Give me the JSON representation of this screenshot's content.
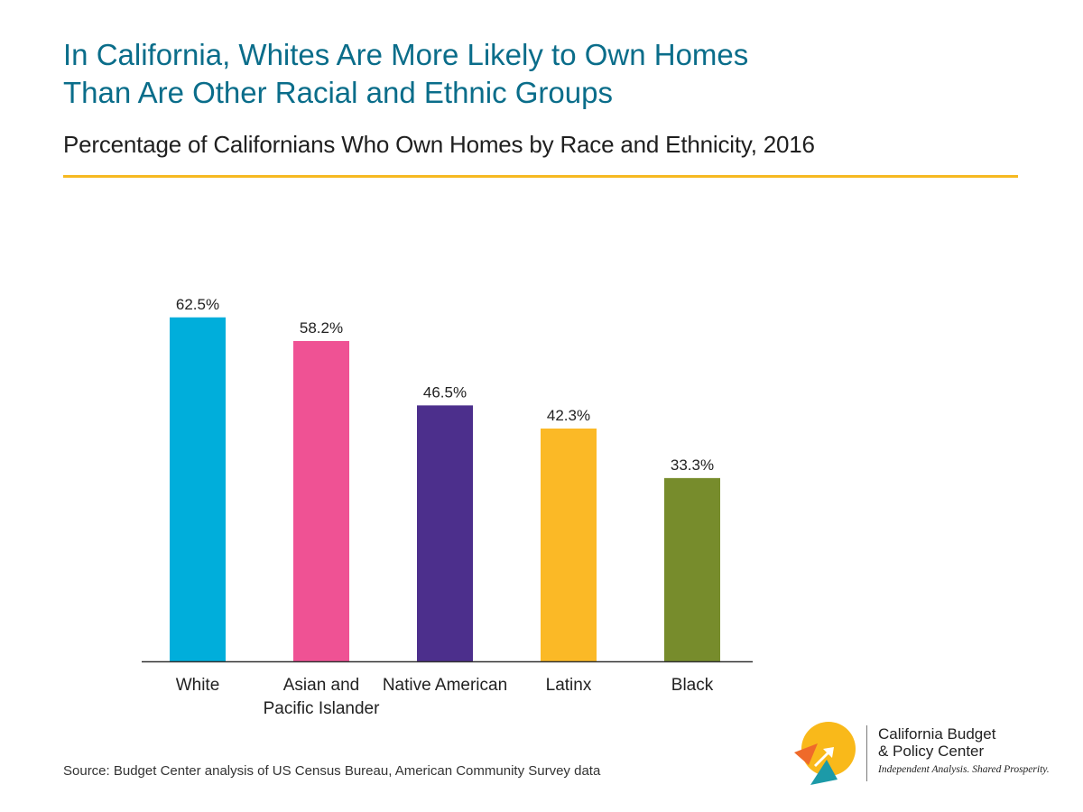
{
  "header": {
    "title_line1": "In California, Whites Are More Likely to Own Homes",
    "title_line2": "Than Are Other Racial and Ethnic Groups",
    "subtitle": "Percentage of Californians Who Own Homes by Race and Ethnicity, 2016"
  },
  "colors": {
    "title": "#0a6d8a",
    "rule": "#f6b921",
    "axis": "#333333"
  },
  "chart_data": {
    "type": "bar",
    "title": "In California, Whites Are More Likely to Own Homes Than Are Other Racial and Ethnic Groups",
    "subtitle": "Percentage of Californians Who Own Homes by Race and Ethnicity, 2016",
    "categories": [
      [
        "White"
      ],
      [
        "Asian and",
        "Pacific Islander"
      ],
      [
        "Native American"
      ],
      [
        "Latinx"
      ],
      [
        "Black"
      ]
    ],
    "values": [
      62.5,
      58.2,
      46.5,
      42.3,
      33.3
    ],
    "value_labels": [
      "62.5%",
      "58.2%",
      "46.5%",
      "42.3%",
      "33.3%"
    ],
    "bar_colors": [
      "#00aedb",
      "#ef5294",
      "#4c2f8c",
      "#fbb926",
      "#778c2c"
    ],
    "xlabel": "",
    "ylabel": "",
    "ylim": [
      0,
      65
    ],
    "grid": false,
    "legend": "none"
  },
  "footer": {
    "source": "Source: Budget Center analysis of US Census Bureau, American Community Survey data"
  },
  "logo": {
    "name_line1": "California Budget",
    "name_line2": "& Policy Center",
    "tagline": "Independent Analysis. Shared Prosperity."
  }
}
